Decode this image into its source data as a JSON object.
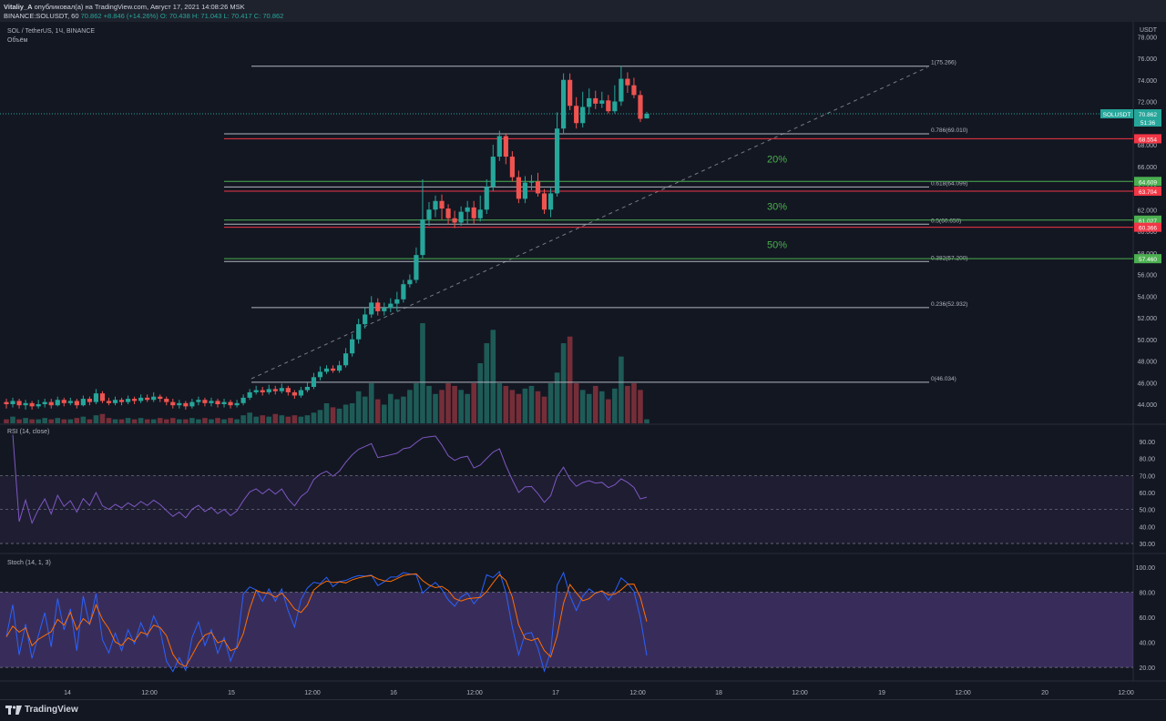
{
  "header": {
    "author": "Vitaliy_A",
    "published_text": "опубликовал(а) на TradingView.com, Август 17, 2021 14:08:26 MSK",
    "symbol_line": "BINANCE:SOLUSDT, 60",
    "last_price": "70.862",
    "change": "+8.846 (+14.26%)",
    "ohlc": "O: 70.438  H: 71.043  L: 70.417  C: 70.862"
  },
  "chart_title": "SOL / TetherUS, 1Ч, BINANCE",
  "volume_label": "Объём",
  "currency_label": "USDT",
  "price_tag": {
    "symbol": "SOLUSDT",
    "price": "70.862",
    "countdown": "51:36"
  },
  "rsi_label": "RSI (14, close)",
  "stoch_label": "Stoch (14, 1, 3)",
  "brand": "TradingView",
  "colors": {
    "bg": "#131722",
    "up": "#26a69a",
    "down": "#ef5350",
    "rsi": "#7e57c2",
    "stoch_k": "#2962ff",
    "stoch_d": "#ff6d00",
    "green_level": "#4caf50",
    "red_level": "#f23645"
  },
  "chart_data": {
    "type": "candlestick",
    "symbol": "SOLUSDT",
    "ylim": [
      43,
      78
    ],
    "price_ticks": [
      44,
      46,
      48,
      50,
      52,
      54,
      56,
      58,
      60,
      62,
      64,
      66,
      68,
      70,
      72,
      74,
      76,
      78
    ],
    "x_ticks": [
      "14",
      "12:00",
      "15",
      "12:00",
      "16",
      "12:00",
      "17",
      "12:00",
      "18",
      "12:00",
      "19",
      "12:00",
      "20",
      "12:00"
    ],
    "fib_levels": [
      {
        "label": "1(75.266)",
        "value": 75.266
      },
      {
        "label": "0.786(69.010)",
        "value": 69.01
      },
      {
        "label": "0.618(64.099)",
        "value": 64.099
      },
      {
        "label": "0.5(60.650)",
        "value": 60.65
      },
      {
        "label": "0.382(57.200)",
        "value": 57.2
      },
      {
        "label": "0.236(52.932)",
        "value": 52.932
      },
      {
        "label": "0(46.034)",
        "value": 46.034
      }
    ],
    "support_levels": [
      {
        "label": "64.609",
        "value": 64.609,
        "color": "green"
      },
      {
        "label": "61.027",
        "value": 61.027,
        "color": "green"
      },
      {
        "label": "57.460",
        "value": 57.46,
        "color": "green"
      }
    ],
    "resistance_levels": [
      {
        "label": "68.554",
        "value": 68.554,
        "color": "red"
      },
      {
        "label": "63.704",
        "value": 63.704,
        "color": "red"
      },
      {
        "label": "60.366",
        "value": 60.366,
        "color": "red"
      }
    ],
    "annotations": [
      {
        "text": "20%",
        "price": 66.7
      },
      {
        "text": "30%",
        "price": 62.3
      },
      {
        "text": "50%",
        "price": 58.8
      }
    ],
    "current_price": 70.862,
    "candles": [
      [
        44.2,
        44.0,
        44.5,
        43.6
      ],
      [
        44.0,
        44.3,
        44.6,
        43.7
      ],
      [
        44.3,
        43.9,
        44.5,
        43.6
      ],
      [
        43.9,
        44.1,
        44.4,
        43.5
      ],
      [
        44.1,
        43.8,
        44.3,
        43.5
      ],
      [
        43.8,
        44.0,
        44.4,
        43.6
      ],
      [
        44.0,
        44.2,
        44.5,
        43.7
      ],
      [
        44.2,
        43.9,
        44.5,
        43.6
      ],
      [
        43.9,
        44.4,
        44.7,
        43.8
      ],
      [
        44.4,
        44.1,
        44.6,
        43.8
      ],
      [
        44.1,
        44.3,
        44.6,
        43.9
      ],
      [
        44.3,
        43.9,
        44.5,
        43.6
      ],
      [
        43.9,
        44.5,
        44.8,
        43.8
      ],
      [
        44.5,
        44.2,
        44.7,
        43.9
      ],
      [
        44.2,
        45.0,
        45.4,
        44.0
      ],
      [
        45.0,
        44.3,
        45.2,
        44.1
      ],
      [
        44.3,
        44.1,
        44.6,
        43.9
      ],
      [
        44.1,
        44.4,
        44.7,
        43.9
      ],
      [
        44.4,
        44.2,
        44.6,
        43.9
      ],
      [
        44.2,
        44.5,
        44.8,
        44.0
      ],
      [
        44.5,
        44.3,
        44.7,
        44.0
      ],
      [
        44.3,
        44.6,
        44.9,
        44.1
      ],
      [
        44.6,
        44.4,
        44.9,
        44.2
      ],
      [
        44.4,
        44.7,
        45.1,
        44.2
      ],
      [
        44.7,
        44.5,
        44.9,
        44.2
      ],
      [
        44.5,
        44.2,
        44.7,
        43.9
      ],
      [
        44.2,
        43.9,
        44.5,
        43.6
      ],
      [
        43.9,
        44.1,
        44.4,
        43.6
      ],
      [
        44.1,
        43.8,
        44.3,
        43.5
      ],
      [
        43.8,
        44.2,
        44.5,
        43.6
      ],
      [
        44.2,
        44.4,
        44.7,
        43.9
      ],
      [
        44.4,
        44.1,
        44.6,
        43.8
      ],
      [
        44.1,
        44.3,
        44.6,
        43.8
      ],
      [
        44.3,
        44.0,
        44.5,
        43.7
      ],
      [
        44.0,
        44.2,
        44.5,
        43.7
      ],
      [
        44.2,
        43.9,
        44.4,
        43.6
      ],
      [
        43.9,
        44.1,
        44.4,
        43.7
      ],
      [
        44.1,
        44.6,
        44.9,
        43.9
      ],
      [
        44.6,
        45.1,
        45.4,
        44.4
      ],
      [
        45.1,
        45.3,
        45.7,
        44.9
      ],
      [
        45.3,
        45.1,
        45.6,
        44.8
      ],
      [
        45.1,
        45.4,
        45.8,
        44.9
      ],
      [
        45.4,
        45.2,
        45.7,
        44.9
      ],
      [
        45.2,
        45.5,
        45.9,
        45.0
      ],
      [
        45.5,
        45.1,
        45.7,
        44.8
      ],
      [
        45.1,
        44.8,
        45.3,
        44.5
      ],
      [
        44.8,
        45.3,
        45.6,
        44.6
      ],
      [
        45.3,
        45.6,
        46.0,
        45.1
      ],
      [
        45.6,
        46.5,
        46.9,
        45.4
      ],
      [
        46.5,
        47.0,
        47.5,
        46.2
      ],
      [
        47.0,
        47.3,
        47.6,
        46.8
      ],
      [
        47.3,
        47.1,
        47.6,
        46.9
      ],
      [
        47.1,
        47.6,
        48.0,
        46.9
      ],
      [
        47.6,
        48.7,
        49.2,
        47.4
      ],
      [
        48.7,
        50.0,
        50.5,
        48.4
      ],
      [
        50.0,
        51.4,
        51.9,
        49.6
      ],
      [
        51.4,
        52.3,
        52.9,
        51.0
      ],
      [
        52.3,
        53.4,
        54.0,
        52.0
      ],
      [
        53.4,
        52.6,
        53.8,
        52.2
      ],
      [
        52.6,
        52.9,
        53.4,
        52.2
      ],
      [
        52.9,
        53.3,
        53.8,
        52.5
      ],
      [
        53.3,
        53.7,
        54.4,
        52.6
      ],
      [
        53.7,
        55.1,
        55.5,
        53.4
      ],
      [
        55.1,
        55.5,
        56.0,
        54.8
      ],
      [
        55.5,
        57.8,
        58.5,
        55.2
      ],
      [
        57.8,
        61.1,
        64.8,
        57.5
      ],
      [
        61.1,
        62.0,
        62.7,
        60.5
      ],
      [
        62.0,
        62.8,
        63.3,
        61.3
      ],
      [
        62.8,
        62.1,
        63.4,
        61.1
      ],
      [
        62.1,
        61.2,
        62.5,
        60.6
      ],
      [
        61.2,
        60.8,
        61.9,
        60.3
      ],
      [
        60.8,
        61.8,
        62.3,
        60.5
      ],
      [
        61.8,
        62.2,
        62.8,
        60.7
      ],
      [
        62.2,
        61.2,
        62.8,
        60.7
      ],
      [
        61.2,
        62.0,
        63.3,
        60.9
      ],
      [
        62.0,
        64.1,
        64.8,
        61.6
      ],
      [
        64.1,
        66.9,
        68.0,
        63.7
      ],
      [
        66.9,
        68.8,
        69.3,
        66.5
      ],
      [
        68.8,
        66.9,
        69.0,
        66.2
      ],
      [
        66.9,
        65.0,
        67.4,
        64.6
      ],
      [
        65.0,
        63.0,
        65.6,
        62.6
      ],
      [
        63.0,
        64.5,
        65.1,
        62.6
      ],
      [
        64.5,
        64.6,
        65.2,
        63.8
      ],
      [
        64.6,
        63.5,
        65.4,
        63.2
      ],
      [
        63.5,
        62.0,
        63.9,
        61.6
      ],
      [
        62.0,
        63.5,
        64.0,
        61.3
      ],
      [
        63.5,
        69.5,
        71.0,
        63.2
      ],
      [
        69.5,
        74.0,
        74.6,
        69.0
      ],
      [
        74.0,
        71.6,
        74.6,
        71.2
      ],
      [
        71.6,
        70.0,
        72.4,
        69.5
      ],
      [
        70.0,
        71.5,
        72.9,
        69.6
      ],
      [
        71.5,
        72.3,
        73.2,
        70.8
      ],
      [
        72.3,
        71.8,
        73.0,
        71.3
      ],
      [
        71.8,
        72.1,
        72.9,
        71.4
      ],
      [
        72.1,
        71.1,
        72.6,
        70.9
      ],
      [
        71.1,
        72.0,
        73.5,
        70.9
      ],
      [
        72.0,
        74.1,
        75.3,
        71.6
      ],
      [
        74.1,
        73.5,
        74.7,
        72.8
      ],
      [
        73.5,
        72.6,
        74.2,
        72.3
      ],
      [
        72.6,
        70.4,
        73.0,
        70.1
      ],
      [
        70.438,
        70.862,
        71.043,
        70.417
      ]
    ],
    "volume": [
      3,
      5,
      3,
      4,
      3,
      3,
      4,
      3,
      4,
      3,
      3,
      4,
      5,
      3,
      6,
      7,
      4,
      3,
      3,
      4,
      3,
      4,
      3,
      3,
      4,
      3,
      4,
      3,
      3,
      4,
      3,
      4,
      3,
      4,
      3,
      4,
      3,
      6,
      8,
      5,
      6,
      5,
      7,
      6,
      5,
      6,
      5,
      6,
      8,
      10,
      15,
      12,
      11,
      14,
      15,
      24,
      20,
      30,
      18,
      14,
      22,
      18,
      20,
      25,
      30,
      75,
      28,
      22,
      25,
      30,
      28,
      25,
      22,
      30,
      45,
      60,
      70,
      30,
      28,
      25,
      22,
      26,
      28,
      24,
      20,
      30,
      38,
      60,
      65,
      30,
      25,
      22,
      28,
      24,
      18,
      26,
      50,
      28,
      30,
      25,
      3
    ],
    "rsi": {
      "ylim": [
        25,
        95
      ],
      "ticks": [
        30,
        40,
        50,
        60,
        70,
        80,
        90
      ],
      "upper": 70,
      "lower": 30
    },
    "stoch": {
      "ylim": [
        10,
        105
      ],
      "ticks": [
        20,
        40,
        60,
        80,
        100
      ],
      "upper": 80,
      "lower": 20
    }
  }
}
